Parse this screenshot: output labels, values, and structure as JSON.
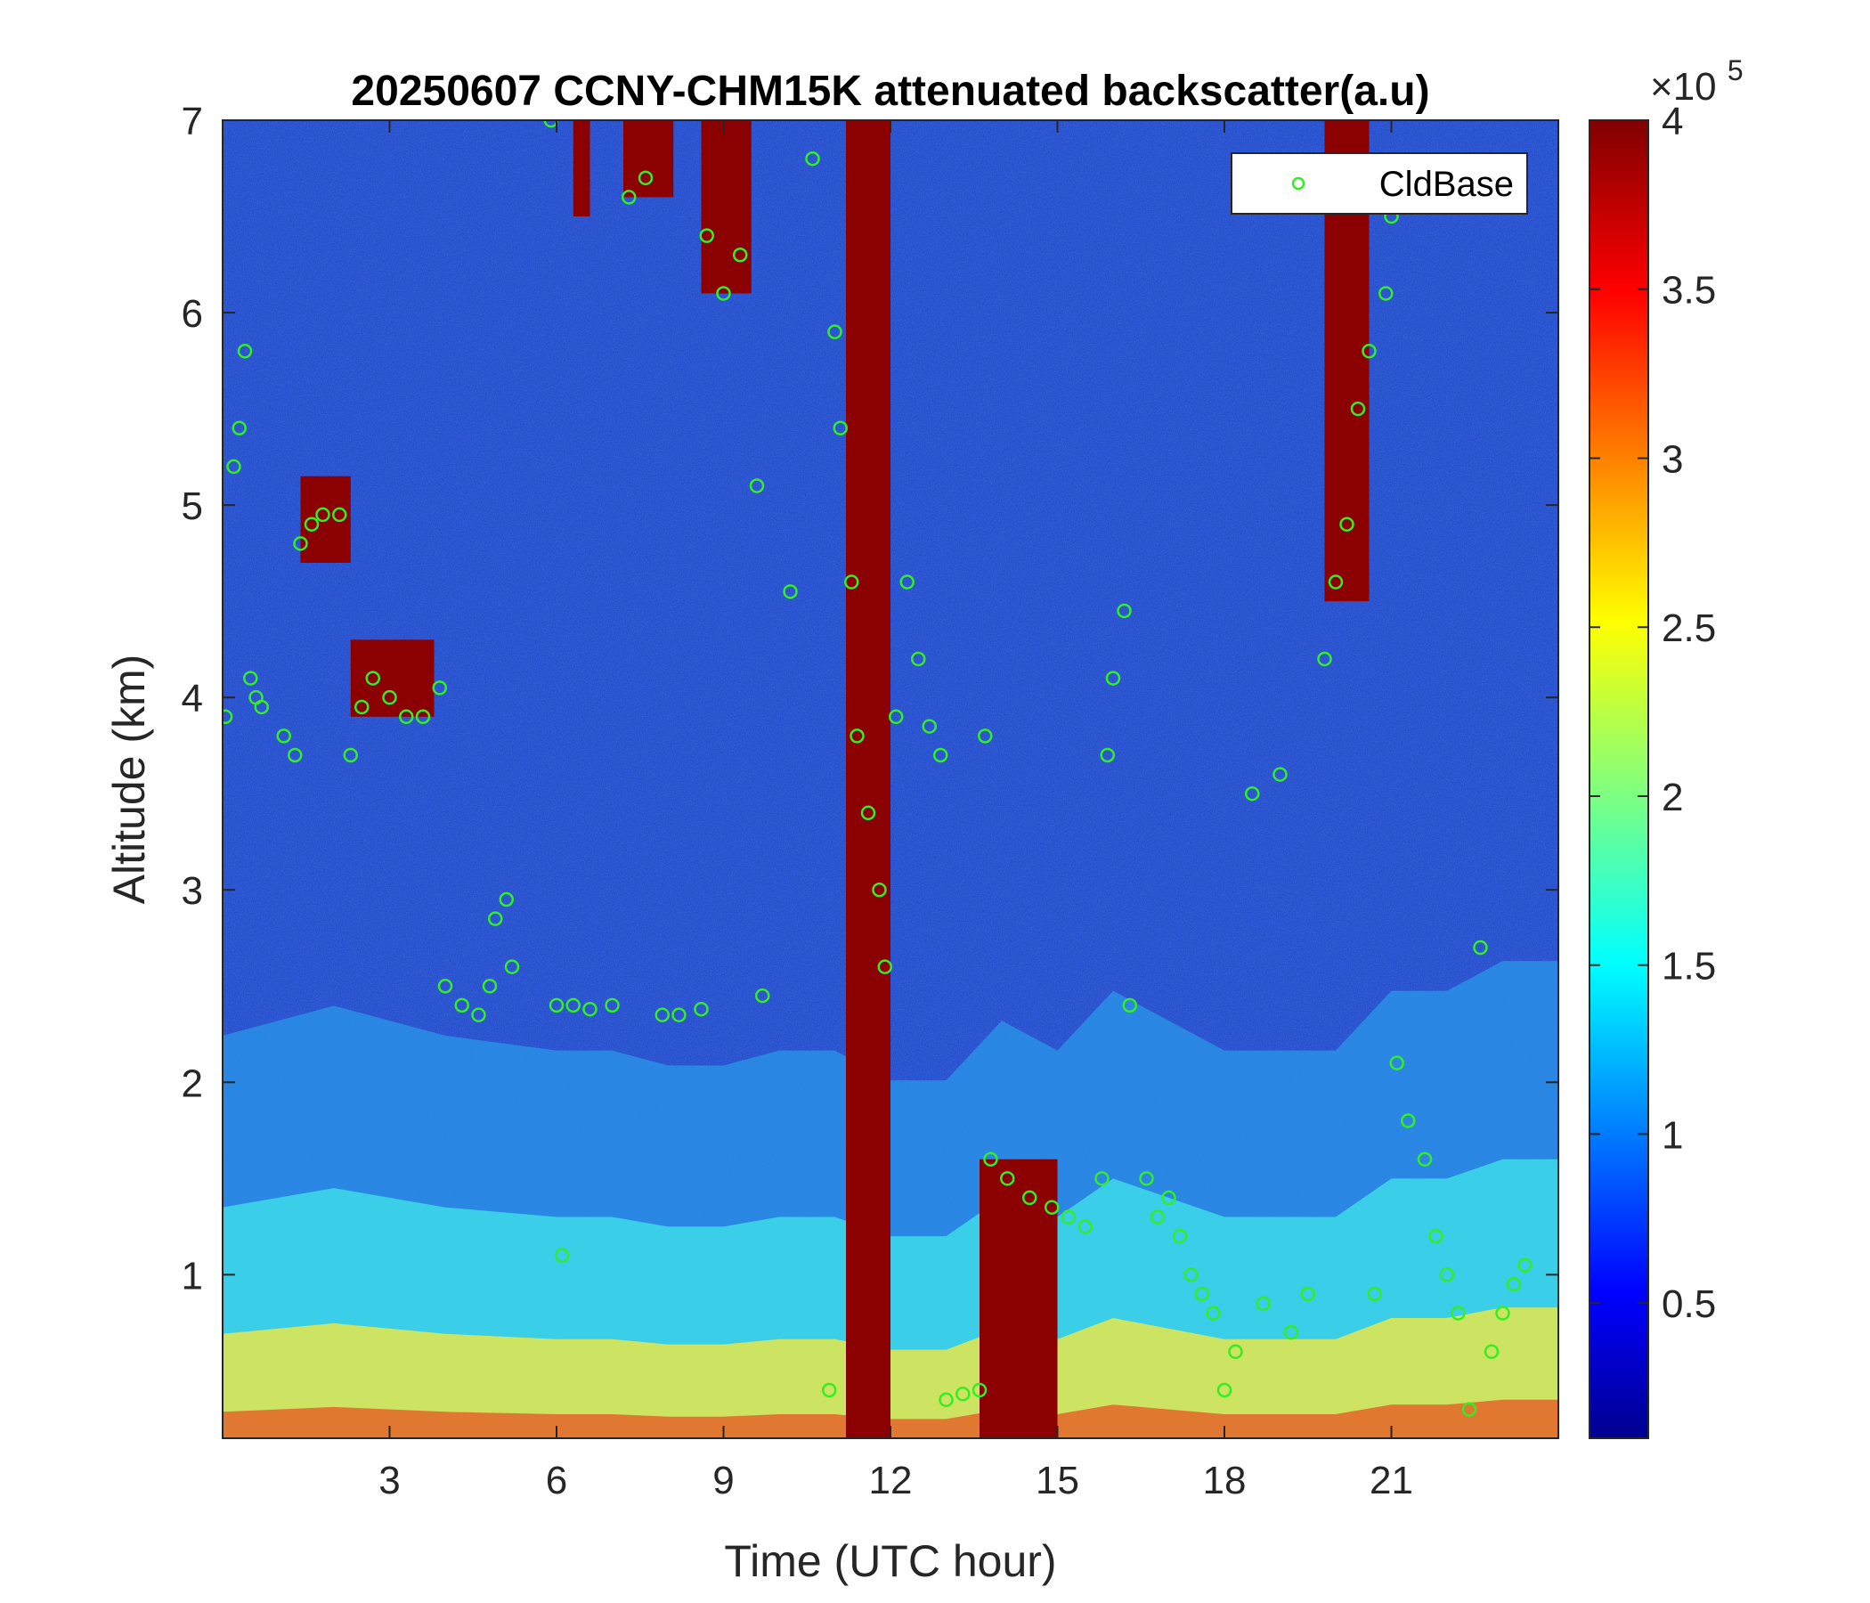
{
  "chart_data": {
    "type": "heatmap",
    "title": "20250607 CCNY-CHM15K attenuated backscatter(a.u)",
    "xlabel": "Time (UTC hour)",
    "ylabel": "Altitude (km)",
    "xlim": [
      0,
      24
    ],
    "ylim": [
      0.15,
      7
    ],
    "xticks": [
      3,
      6,
      9,
      12,
      15,
      18,
      21
    ],
    "yticks": [
      1,
      2,
      3,
      4,
      5,
      6,
      7
    ],
    "colorbar": {
      "range": [
        10000,
        400000
      ],
      "ticks": [
        0.5,
        1,
        1.5,
        2,
        2.5,
        3,
        3.5,
        4
      ],
      "multiplier_base": "×10",
      "multiplier_exponent": "5",
      "colormap": "jet"
    },
    "legend": {
      "position": "top-right",
      "entries": [
        "CldBase"
      ]
    },
    "cloud_base_color": "#33ee22",
    "features": {
      "surface_aerosol_layer": {
        "x": [
          0,
          2,
          4,
          6,
          7,
          8,
          9,
          10,
          11,
          12,
          13,
          14,
          15,
          16,
          17,
          18,
          19,
          20,
          21,
          22,
          23,
          24
        ],
        "top_km": [
          1.35,
          1.45,
          1.35,
          1.3,
          1.3,
          1.25,
          1.25,
          1.3,
          1.3,
          1.2,
          1.2,
          1.4,
          1.3,
          1.5,
          1.4,
          1.3,
          1.3,
          1.3,
          1.5,
          1.5,
          1.6,
          1.6
        ]
      },
      "cloud_blocks": [
        {
          "t0": 11.2,
          "t1": 12.0,
          "z0": 0.15,
          "z1": 7.0
        },
        {
          "t0": 13.6,
          "t1": 15.0,
          "z0": 0.15,
          "z1": 1.6
        },
        {
          "t0": 8.6,
          "t1": 9.5,
          "z0": 6.1,
          "z1": 7.0
        },
        {
          "t0": 6.3,
          "t1": 6.6,
          "z0": 6.5,
          "z1": 7.0
        },
        {
          "t0": 7.2,
          "t1": 8.1,
          "z0": 6.6,
          "z1": 7.0
        },
        {
          "t0": 1.4,
          "t1": 2.3,
          "z0": 4.7,
          "z1": 5.15
        },
        {
          "t0": 2.3,
          "t1": 3.8,
          "z0": 3.9,
          "z1": 4.3
        },
        {
          "t0": 19.8,
          "t1": 20.6,
          "z0": 4.5,
          "z1": 7.0
        }
      ],
      "cloud_base_points": [
        {
          "t": 0.05,
          "z": 3.9
        },
        {
          "t": 0.2,
          "z": 5.2
        },
        {
          "t": 0.3,
          "z": 5.4
        },
        {
          "t": 0.4,
          "z": 5.8
        },
        {
          "t": 0.5,
          "z": 4.1
        },
        {
          "t": 0.6,
          "z": 4.0
        },
        {
          "t": 0.7,
          "z": 3.95
        },
        {
          "t": 1.1,
          "z": 3.8
        },
        {
          "t": 1.3,
          "z": 3.7
        },
        {
          "t": 1.4,
          "z": 4.8
        },
        {
          "t": 1.6,
          "z": 4.9
        },
        {
          "t": 1.8,
          "z": 4.95
        },
        {
          "t": 2.1,
          "z": 4.95
        },
        {
          "t": 2.3,
          "z": 3.7
        },
        {
          "t": 2.5,
          "z": 3.95
        },
        {
          "t": 2.7,
          "z": 4.1
        },
        {
          "t": 3.0,
          "z": 4.0
        },
        {
          "t": 3.3,
          "z": 3.9
        },
        {
          "t": 3.6,
          "z": 3.9
        },
        {
          "t": 3.9,
          "z": 4.05
        },
        {
          "t": 4.0,
          "z": 2.5
        },
        {
          "t": 4.3,
          "z": 2.4
        },
        {
          "t": 4.6,
          "z": 2.35
        },
        {
          "t": 4.8,
          "z": 2.5
        },
        {
          "t": 4.9,
          "z": 2.85
        },
        {
          "t": 5.1,
          "z": 2.95
        },
        {
          "t": 5.2,
          "z": 2.6
        },
        {
          "t": 5.9,
          "z": 7.0
        },
        {
          "t": 6.0,
          "z": 2.4
        },
        {
          "t": 6.1,
          "z": 1.1
        },
        {
          "t": 6.3,
          "z": 2.4
        },
        {
          "t": 6.6,
          "z": 2.38
        },
        {
          "t": 7.0,
          "z": 2.4
        },
        {
          "t": 7.3,
          "z": 6.6
        },
        {
          "t": 7.6,
          "z": 6.7
        },
        {
          "t": 7.9,
          "z": 2.35
        },
        {
          "t": 8.2,
          "z": 2.35
        },
        {
          "t": 8.6,
          "z": 2.38
        },
        {
          "t": 8.7,
          "z": 6.4
        },
        {
          "t": 9.0,
          "z": 6.1
        },
        {
          "t": 9.3,
          "z": 6.3
        },
        {
          "t": 9.6,
          "z": 5.1
        },
        {
          "t": 9.7,
          "z": 2.45
        },
        {
          "t": 10.2,
          "z": 4.55
        },
        {
          "t": 10.6,
          "z": 6.8
        },
        {
          "t": 10.9,
          "z": 0.4
        },
        {
          "t": 11.0,
          "z": 5.9
        },
        {
          "t": 11.1,
          "z": 5.4
        },
        {
          "t": 11.3,
          "z": 4.6
        },
        {
          "t": 11.4,
          "z": 3.8
        },
        {
          "t": 11.6,
          "z": 3.4
        },
        {
          "t": 11.8,
          "z": 3.0
        },
        {
          "t": 11.9,
          "z": 2.6
        },
        {
          "t": 12.1,
          "z": 3.9
        },
        {
          "t": 12.3,
          "z": 4.6
        },
        {
          "t": 12.5,
          "z": 4.2
        },
        {
          "t": 12.7,
          "z": 3.85
        },
        {
          "t": 12.9,
          "z": 3.7
        },
        {
          "t": 13.0,
          "z": 0.35
        },
        {
          "t": 13.3,
          "z": 0.38
        },
        {
          "t": 13.6,
          "z": 0.4
        },
        {
          "t": 13.7,
          "z": 3.8
        },
        {
          "t": 13.8,
          "z": 1.6
        },
        {
          "t": 14.1,
          "z": 1.5
        },
        {
          "t": 14.5,
          "z": 1.4
        },
        {
          "t": 14.9,
          "z": 1.35
        },
        {
          "t": 15.2,
          "z": 1.3
        },
        {
          "t": 15.5,
          "z": 1.25
        },
        {
          "t": 15.8,
          "z": 1.5
        },
        {
          "t": 15.9,
          "z": 3.7
        },
        {
          "t": 16.0,
          "z": 4.1
        },
        {
          "t": 16.2,
          "z": 4.45
        },
        {
          "t": 16.3,
          "z": 2.4
        },
        {
          "t": 16.6,
          "z": 1.5
        },
        {
          "t": 16.8,
          "z": 1.3
        },
        {
          "t": 17.0,
          "z": 1.4
        },
        {
          "t": 17.2,
          "z": 1.2
        },
        {
          "t": 17.4,
          "z": 1.0
        },
        {
          "t": 17.6,
          "z": 0.9
        },
        {
          "t": 17.8,
          "z": 0.8
        },
        {
          "t": 18.0,
          "z": 0.4
        },
        {
          "t": 18.2,
          "z": 0.6
        },
        {
          "t": 18.5,
          "z": 3.5
        },
        {
          "t": 18.7,
          "z": 0.85
        },
        {
          "t": 19.0,
          "z": 3.6
        },
        {
          "t": 19.2,
          "z": 0.7
        },
        {
          "t": 19.5,
          "z": 0.9
        },
        {
          "t": 19.8,
          "z": 4.2
        },
        {
          "t": 20.0,
          "z": 4.6
        },
        {
          "t": 20.2,
          "z": 4.9
        },
        {
          "t": 20.4,
          "z": 5.5
        },
        {
          "t": 20.6,
          "z": 5.8
        },
        {
          "t": 20.7,
          "z": 0.9
        },
        {
          "t": 20.9,
          "z": 6.1
        },
        {
          "t": 21.0,
          "z": 6.5
        },
        {
          "t": 21.1,
          "z": 2.1
        },
        {
          "t": 21.3,
          "z": 1.8
        },
        {
          "t": 21.6,
          "z": 1.6
        },
        {
          "t": 21.8,
          "z": 1.2
        },
        {
          "t": 22.0,
          "z": 1.0
        },
        {
          "t": 22.2,
          "z": 0.8
        },
        {
          "t": 22.4,
          "z": 0.3
        },
        {
          "t": 22.6,
          "z": 2.7
        },
        {
          "t": 22.8,
          "z": 0.6
        },
        {
          "t": 23.0,
          "z": 0.8
        },
        {
          "t": 23.2,
          "z": 0.95
        },
        {
          "t": 23.4,
          "z": 1.05
        }
      ]
    }
  }
}
